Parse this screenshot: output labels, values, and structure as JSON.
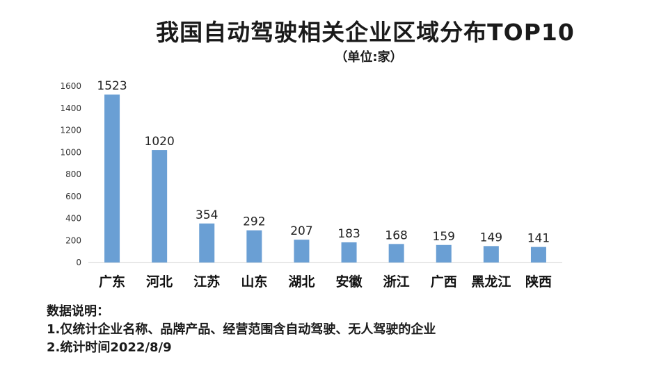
{
  "header": {
    "title": "我国自动驾驶相关企业区域分布TOP10",
    "subtitle": "（单位:家）"
  },
  "notes": {
    "heading": "数据说明：",
    "lines": [
      "1.仅统计企业名称、品牌产品、经营范围含自动驾驶、无人驾驶的企业",
      "2.统计时间2022/8/9"
    ]
  },
  "chart_data": {
    "type": "bar",
    "title": "我国自动驾驶相关企业区域分布TOP10",
    "subtitle": "（单位:家）",
    "categories": [
      "广东",
      "河北",
      "江苏",
      "山东",
      "湖北",
      "安徽",
      "浙江",
      "广西",
      "黑龙江",
      "陕西"
    ],
    "values": [
      1523,
      1020,
      354,
      292,
      207,
      183,
      168,
      159,
      149,
      141
    ],
    "yticks": [
      0,
      200,
      400,
      600,
      800,
      1000,
      1200,
      1400,
      1600
    ],
    "ylim": [
      0,
      1600
    ],
    "bar_color": "#6a9fd4",
    "grid": false,
    "legend": "none"
  }
}
